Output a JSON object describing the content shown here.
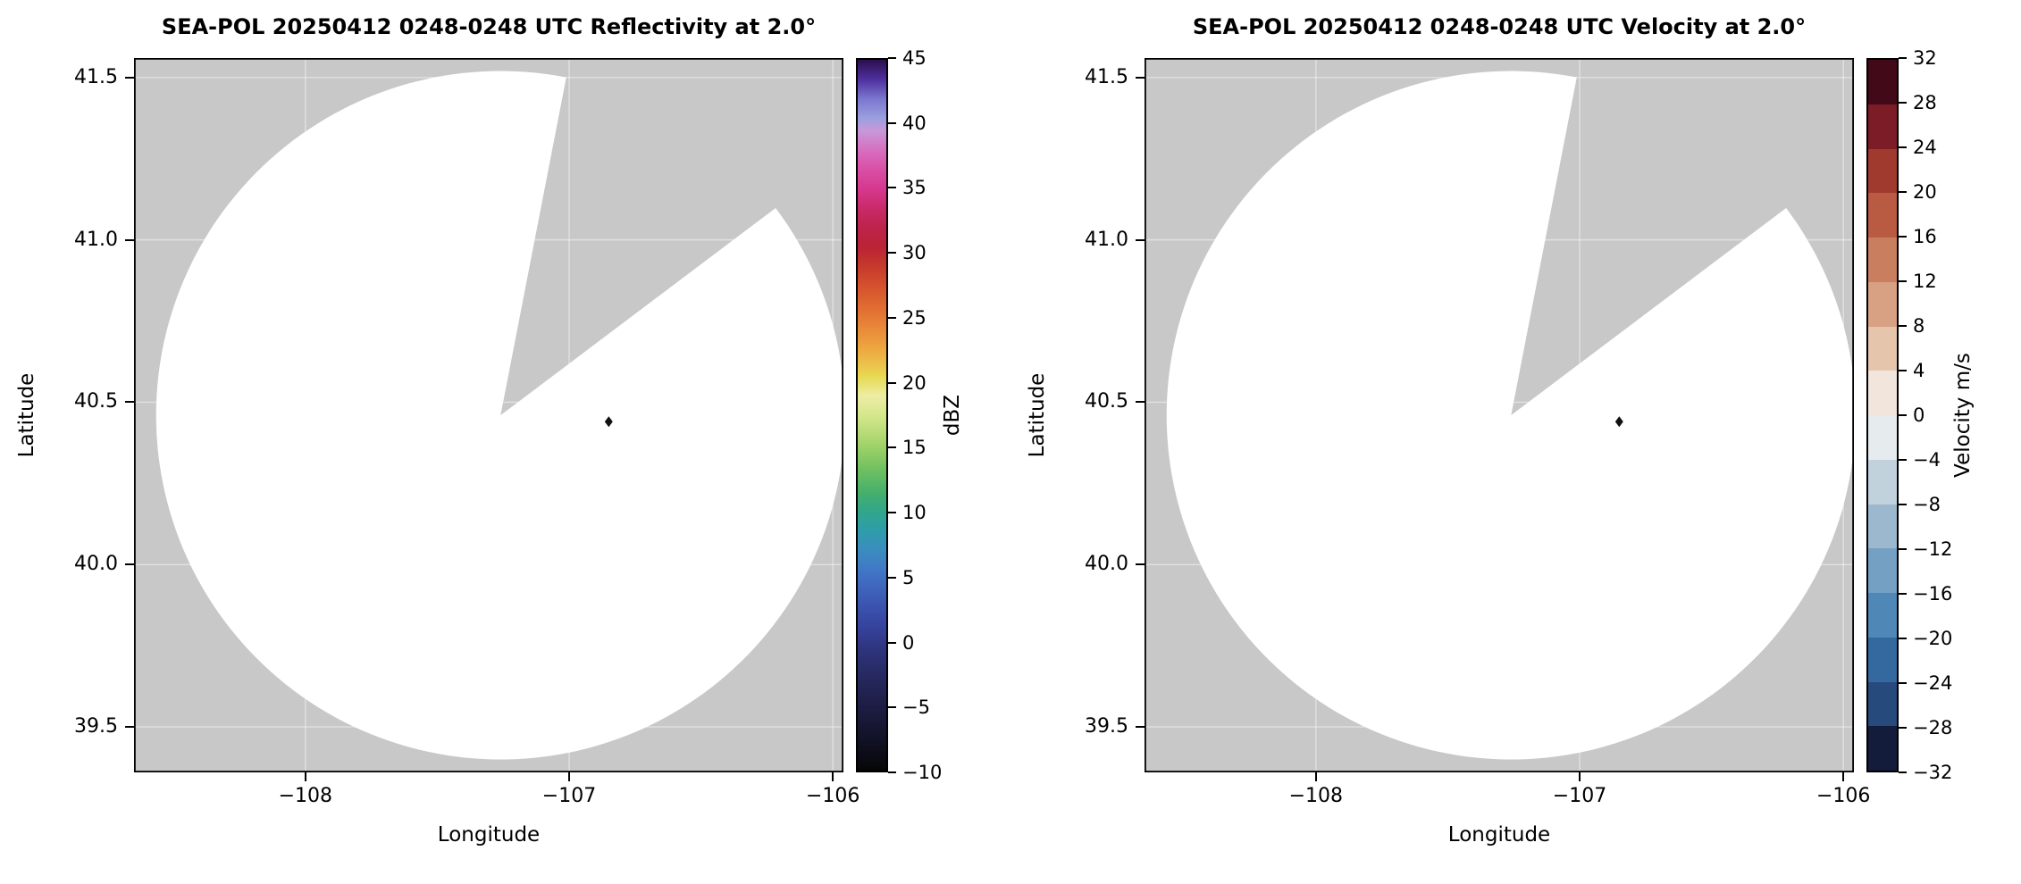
{
  "figure": {
    "background": "#ffffff",
    "nodata_color": "#c8c8c8",
    "scan_fill": "#ffffff",
    "frame_color": "#000000",
    "grid_rgba": "rgba(255,255,255,0.45)",
    "marker_color": "#111111"
  },
  "chart_data": [
    {
      "type": "radar_ppi",
      "title": "SEA-POL 20250412 0248-0248 UTC Reflectivity at 2.0°",
      "radar_name": "SEA-POL",
      "date_utc": "20250412",
      "time_utc": "0248-0248 UTC",
      "field": "Reflectivity",
      "elevation_deg": 2.0,
      "xlabel": "Longitude",
      "ylabel": "Latitude",
      "xlim": [
        -108.65,
        -105.96
      ],
      "ylim": [
        39.36,
        41.56
      ],
      "x_ticks": [
        {
          "v": -108,
          "label": "−108"
        },
        {
          "v": -107,
          "label": "−107"
        },
        {
          "v": -106,
          "label": "−106"
        }
      ],
      "y_ticks": [
        {
          "v": 41.5,
          "label": "41.5"
        },
        {
          "v": 41.0,
          "label": "41.0"
        },
        {
          "v": 40.5,
          "label": "40.5"
        },
        {
          "v": 40.0,
          "label": "40.0"
        },
        {
          "v": 39.5,
          "label": "39.5"
        }
      ],
      "radar_center_lonlat": [
        -107.26,
        40.46
      ],
      "scan_radius_deg_lat": 1.06,
      "blocked_sector_azimuth_deg": [
        11,
        53
      ],
      "marker_lonlat": [
        -106.85,
        40.44
      ],
      "echoes": "none — scan area blank (no reflectivity displayed above minimum)",
      "colorbar": {
        "label": "dBZ",
        "min": -10,
        "max": 45,
        "kind": "continuous",
        "ticks": [
          {
            "v": 45,
            "label": "45"
          },
          {
            "v": 40,
            "label": "40"
          },
          {
            "v": 35,
            "label": "35"
          },
          {
            "v": 30,
            "label": "30"
          },
          {
            "v": 25,
            "label": "25"
          },
          {
            "v": 20,
            "label": "20"
          },
          {
            "v": 15,
            "label": "15"
          },
          {
            "v": 10,
            "label": "10"
          },
          {
            "v": 5,
            "label": "5"
          },
          {
            "v": 0,
            "label": "0"
          },
          {
            "v": -5,
            "label": "−5"
          },
          {
            "v": -10,
            "label": "−10"
          }
        ],
        "stops": [
          {
            "v": 45,
            "c": "#2a0f4e"
          },
          {
            "v": 43.5,
            "c": "#4f2f9e"
          },
          {
            "v": 42,
            "c": "#7a76cf"
          },
          {
            "v": 40.5,
            "c": "#9b9fe0"
          },
          {
            "v": 39.5,
            "c": "#c898d8"
          },
          {
            "v": 38,
            "c": "#d66fc0"
          },
          {
            "v": 36.5,
            "c": "#d94fa6"
          },
          {
            "v": 35,
            "c": "#d6388e"
          },
          {
            "v": 33.5,
            "c": "#c92a69"
          },
          {
            "v": 32,
            "c": "#bd234a"
          },
          {
            "v": 30.5,
            "c": "#ba2336"
          },
          {
            "v": 29,
            "c": "#c73a2b"
          },
          {
            "v": 27.5,
            "c": "#d4512e"
          },
          {
            "v": 26,
            "c": "#df6a31"
          },
          {
            "v": 24.5,
            "c": "#e88338"
          },
          {
            "v": 23,
            "c": "#eda03f"
          },
          {
            "v": 21.5,
            "c": "#ecc04a"
          },
          {
            "v": 20.5,
            "c": "#e7d952"
          },
          {
            "v": 19,
            "c": "#eeeda4"
          },
          {
            "v": 17.5,
            "c": "#d5e78c"
          },
          {
            "v": 15.5,
            "c": "#a9d66d"
          },
          {
            "v": 13.5,
            "c": "#74c25f"
          },
          {
            "v": 11.5,
            "c": "#45b06b"
          },
          {
            "v": 10,
            "c": "#30a68c"
          },
          {
            "v": 8.5,
            "c": "#2f9cab"
          },
          {
            "v": 7,
            "c": "#3b8cbf"
          },
          {
            "v": 5.5,
            "c": "#4177c6"
          },
          {
            "v": 4,
            "c": "#3f63bb"
          },
          {
            "v": 2.5,
            "c": "#3a51ac"
          },
          {
            "v": 1,
            "c": "#35429b"
          },
          {
            "v": -0.5,
            "c": "#2f357f"
          },
          {
            "v": -2.5,
            "c": "#272a62"
          },
          {
            "v": -5,
            "c": "#1d1d44"
          },
          {
            "v": -7.5,
            "c": "#121227"
          },
          {
            "v": -10,
            "c": "#060608"
          }
        ]
      }
    },
    {
      "type": "radar_ppi",
      "title": "SEA-POL 20250412 0248-0248 UTC Velocity at 2.0°",
      "radar_name": "SEA-POL",
      "date_utc": "20250412",
      "time_utc": "0248-0248 UTC",
      "field": "Velocity",
      "elevation_deg": 2.0,
      "xlabel": "Longitude",
      "ylabel": "Latitude",
      "xlim": [
        -108.65,
        -105.96
      ],
      "ylim": [
        39.36,
        41.56
      ],
      "x_ticks": [
        {
          "v": -108,
          "label": "−108"
        },
        {
          "v": -107,
          "label": "−107"
        },
        {
          "v": -106,
          "label": "−106"
        }
      ],
      "y_ticks": [
        {
          "v": 41.5,
          "label": "41.5"
        },
        {
          "v": 41.0,
          "label": "41.0"
        },
        {
          "v": 40.5,
          "label": "40.5"
        },
        {
          "v": 40.0,
          "label": "40.0"
        },
        {
          "v": 39.5,
          "label": "39.5"
        }
      ],
      "radar_center_lonlat": [
        -107.26,
        40.46
      ],
      "scan_radius_deg_lat": 1.06,
      "blocked_sector_azimuth_deg": [
        11,
        53
      ],
      "marker_lonlat": [
        -106.85,
        40.44
      ],
      "echoes": "none — scan area blank (no velocity data displayed)",
      "colorbar": {
        "label": "Velocity m/s",
        "min": -32,
        "max": 32,
        "kind": "discrete",
        "ticks": [
          {
            "v": 32,
            "label": "32"
          },
          {
            "v": 28,
            "label": "28"
          },
          {
            "v": 24,
            "label": "24"
          },
          {
            "v": 20,
            "label": "20"
          },
          {
            "v": 16,
            "label": "16"
          },
          {
            "v": 12,
            "label": "12"
          },
          {
            "v": 8,
            "label": "8"
          },
          {
            "v": 4,
            "label": "4"
          },
          {
            "v": 0,
            "label": "0"
          },
          {
            "v": -4,
            "label": "−4"
          },
          {
            "v": -8,
            "label": "−8"
          },
          {
            "v": -12,
            "label": "−12"
          },
          {
            "v": -16,
            "label": "−16"
          },
          {
            "v": -20,
            "label": "−20"
          },
          {
            "v": -24,
            "label": "−24"
          },
          {
            "v": -28,
            "label": "−28"
          },
          {
            "v": -32,
            "label": "−32"
          }
        ],
        "segments": [
          {
            "from": 28,
            "to": 32,
            "c": "#420a19"
          },
          {
            "from": 24,
            "to": 28,
            "c": "#7c1c26"
          },
          {
            "from": 20,
            "to": 24,
            "c": "#a03a2e"
          },
          {
            "from": 16,
            "to": 20,
            "c": "#b85b42"
          },
          {
            "from": 12,
            "to": 16,
            "c": "#c97e5f"
          },
          {
            "from": 8,
            "to": 12,
            "c": "#d8a183"
          },
          {
            "from": 4,
            "to": 8,
            "c": "#e6c5ad"
          },
          {
            "from": 0,
            "to": 4,
            "c": "#f2e6dc"
          },
          {
            "from": -4,
            "to": 0,
            "c": "#e6ebed"
          },
          {
            "from": -8,
            "to": -4,
            "c": "#c2d2dd"
          },
          {
            "from": -12,
            "to": -8,
            "c": "#9bb8cf"
          },
          {
            "from": -16,
            "to": -12,
            "c": "#74a0c4"
          },
          {
            "from": -20,
            "to": -16,
            "c": "#4f87b7"
          },
          {
            "from": -24,
            "to": -20,
            "c": "#33699f"
          },
          {
            "from": -28,
            "to": -24,
            "c": "#274a7c"
          },
          {
            "from": -32,
            "to": -28,
            "c": "#131c3b"
          }
        ]
      }
    }
  ]
}
